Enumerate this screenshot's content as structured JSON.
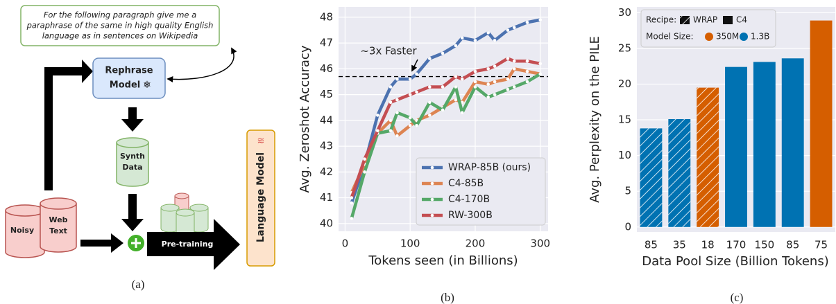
{
  "diagram": {
    "prompt_lines": [
      "For the following paragraph give me a",
      "paraphrase of the same in high quality English",
      "language as in sentences on Wikipedia"
    ],
    "rephrase_lines": [
      "Rephrase",
      "Model"
    ],
    "synth_lines": [
      "Synth",
      "Data"
    ],
    "noisy": "Noisy",
    "web_lines": [
      "Web",
      "Text"
    ],
    "pretraining": "Pre-training",
    "language_model": "Language Model"
  },
  "captions": [
    "(a)",
    "(b)",
    "(c)"
  ],
  "chart_data": [
    {
      "type": "line",
      "xlabel": "Tokens seen (in Billions)",
      "ylabel": "Avg. Zeroshot Accuracy",
      "x": [
        10,
        30,
        50,
        70,
        80,
        100,
        110,
        130,
        150,
        170,
        180,
        200,
        220,
        230,
        250,
        260,
        280,
        300
      ],
      "xlim": [
        -10,
        312
      ],
      "ylim": [
        39.7,
        48.4
      ],
      "xticks": [
        0,
        100,
        200,
        300
      ],
      "yticks": [
        40,
        41,
        42,
        43,
        44,
        45,
        46,
        47,
        48
      ],
      "grid": true,
      "legend": "lower right",
      "hline": 45.7,
      "annotation": "~3x Faster",
      "series": [
        {
          "name": "WRAP-85B (ours)",
          "color": "#4c72b0",
          "values": [
            40.8,
            42.3,
            44.2,
            45.3,
            45.6,
            45.6,
            45.8,
            46.4,
            46.6,
            46.9,
            47.2,
            47.1,
            47.4,
            47.1,
            47.5,
            47.6,
            47.8,
            47.9
          ]
        },
        {
          "name": "C4-85B",
          "color": "#dd8452",
          "values": [
            41.2,
            42.3,
            43.5,
            44.0,
            43.4,
            43.8,
            44.0,
            44.2,
            44.5,
            44.8,
            44.7,
            45.5,
            45.4,
            45.5,
            45.6,
            46.0,
            45.9,
            45.8
          ]
        },
        {
          "name": "C4-170B",
          "color": "#55a868",
          "values": [
            40.2,
            42.0,
            43.5,
            43.6,
            44.3,
            44.1,
            43.8,
            44.7,
            44.4,
            45.3,
            44.3,
            45.3,
            44.9,
            45.0,
            45.2,
            45.3,
            45.5,
            45.8
          ]
        },
        {
          "name": "RW-300B",
          "color": "#c44e52",
          "values": [
            41.0,
            42.5,
            43.6,
            44.7,
            44.8,
            45.0,
            45.1,
            45.3,
            45.3,
            45.7,
            45.6,
            45.9,
            46.0,
            46.1,
            46.4,
            46.3,
            46.3,
            46.2
          ]
        }
      ]
    },
    {
      "type": "bar",
      "xlabel": "Data Pool Size (Billion Tokens)",
      "ylabel": "Avg. Perplexity on the PILE",
      "categories": [
        "85",
        "35",
        "18",
        "170",
        "150",
        "85",
        "75"
      ],
      "values": [
        13.8,
        15.1,
        19.5,
        22.4,
        23.1,
        23.6,
        28.9
      ],
      "colors": [
        "#0072b2",
        "#0072b2",
        "#d55e00",
        "#0072b2",
        "#0072b2",
        "#0072b2",
        "#d55e00"
      ],
      "hatched": [
        true,
        true,
        true,
        false,
        false,
        false,
        false
      ],
      "ylim": [
        -0.7,
        30.8
      ],
      "yticks": [
        0,
        5,
        10,
        15,
        20,
        25,
        30
      ],
      "grid": true,
      "legend": {
        "recipe_label": "Recipe:",
        "recipes": [
          {
            "name": "WRAP",
            "hatch": true
          },
          {
            "name": "C4",
            "hatch": false
          }
        ],
        "size_label": "Model Size:",
        "sizes": [
          {
            "name": "350M",
            "color": "#d55e00"
          },
          {
            "name": "1.3B",
            "color": "#0072b2"
          }
        ]
      }
    }
  ]
}
